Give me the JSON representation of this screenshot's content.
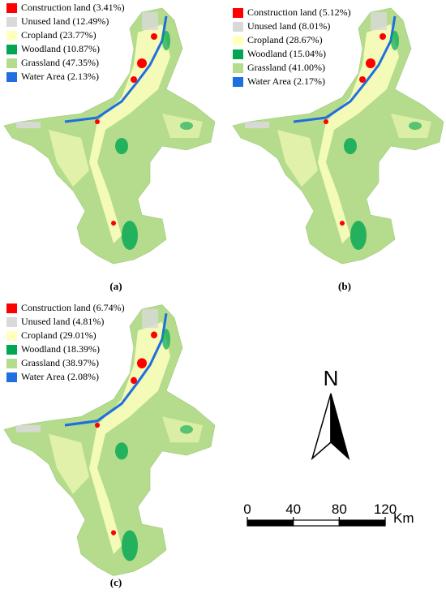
{
  "maps": [
    {
      "label": "(a)",
      "legend": [
        {
          "text": "Construction land (3.41%)",
          "color": "#ff0000"
        },
        {
          "text": "Unused land (12.49%)",
          "color": "#d9d9d9"
        },
        {
          "text": "Cropland (23.77%)",
          "color": "#ffffbe"
        },
        {
          "text": "Woodland (10.87%)",
          "color": "#00a651"
        },
        {
          "text": "Grassland (47.35%)",
          "color": "#b5dc8c"
        },
        {
          "text": "Water Area (2.13%)",
          "color": "#1f6fe0"
        }
      ]
    },
    {
      "label": "(b)",
      "legend": [
        {
          "text": "Construction land (5.12%)",
          "color": "#ff0000"
        },
        {
          "text": "Unused land (8.01%)",
          "color": "#d9d9d9"
        },
        {
          "text": "Cropland (28.67%)",
          "color": "#ffffbe"
        },
        {
          "text": "Woodland (15.04%)",
          "color": "#00a651"
        },
        {
          "text": "Grassland (41.00%)",
          "color": "#b5dc8c"
        },
        {
          "text": "Water Area (2.17%)",
          "color": "#1f6fe0"
        }
      ]
    },
    {
      "label": "(c)",
      "legend": [
        {
          "text": "Construction land (6.74%)",
          "color": "#ff0000"
        },
        {
          "text": "Unused land (4.81%)",
          "color": "#d9d9d9"
        },
        {
          "text": "Cropland (29.01%)",
          "color": "#ffffbe"
        },
        {
          "text": "Woodland (18.39%)",
          "color": "#00a651"
        },
        {
          "text": "Grassland (38.97%)",
          "color": "#b5dc8c"
        },
        {
          "text": "Water Area (2.08%)",
          "color": "#1f6fe0"
        }
      ]
    }
  ],
  "north": "N",
  "scale_bar": {
    "ticks": [
      0,
      40,
      80,
      120
    ],
    "unit": "Km"
  }
}
